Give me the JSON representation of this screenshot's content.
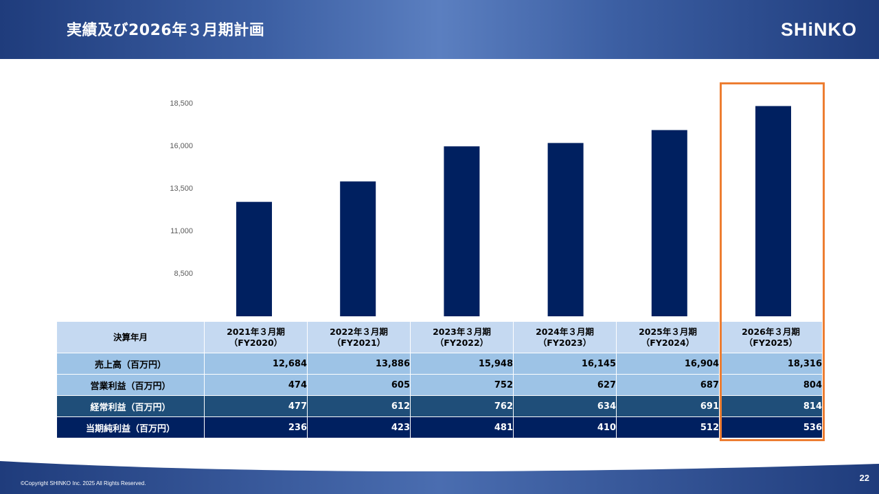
{
  "header": {
    "title": "実績及び2026年３月期計画",
    "logo_text": "SHiNKO"
  },
  "colors": {
    "bar": "#002060",
    "highlight": "#ed7d31",
    "header_dark": "#1f3c7c",
    "header_light": "#5b7fc0"
  },
  "chart_data": {
    "type": "bar",
    "title": "",
    "xlabel": "",
    "ylabel": "",
    "categories": [
      "FY2020",
      "FY2021",
      "FY2022",
      "FY2023",
      "FY2024",
      "FY2025"
    ],
    "values": [
      12684,
      13886,
      15948,
      16145,
      16904,
      18316
    ],
    "yticks": [
      8500,
      11000,
      13500,
      16000,
      18500
    ],
    "ytick_labels": [
      "8,500",
      "11,000",
      "13,500",
      "16,000",
      "18,500"
    ],
    "ylim": [
      6000,
      19750
    ],
    "grid": false,
    "legend": "none",
    "highlighted_category": "FY2025"
  },
  "table": {
    "corner_label": "決算年月",
    "columns": [
      {
        "line1": "2021年３月期",
        "line2": "（FY2020）"
      },
      {
        "line1": "2022年３月期",
        "line2": "（FY2021）"
      },
      {
        "line1": "2023年３月期",
        "line2": "（FY2022）"
      },
      {
        "line1": "2024年３月期",
        "line2": "（FY2023）"
      },
      {
        "line1": "2025年３月期",
        "line2": "（FY2024）"
      },
      {
        "line1": "2026年３月期",
        "line2": "（FY2025）"
      }
    ],
    "rows": [
      {
        "label": "売上高（百万円）",
        "values": [
          "12,684",
          "13,886",
          "15,948",
          "16,145",
          "16,904",
          "18,316"
        ]
      },
      {
        "label": "営業利益（百万円）",
        "values": [
          "474",
          "605",
          "752",
          "627",
          "687",
          "804"
        ]
      },
      {
        "label": "経常利益（百万円）",
        "values": [
          "477",
          "612",
          "762",
          "634",
          "691",
          "814"
        ]
      },
      {
        "label": "当期純利益（百万円）",
        "values": [
          "236",
          "423",
          "481",
          "410",
          "512",
          "536"
        ]
      }
    ]
  },
  "footer": {
    "copyright": "©Copyright SHINKO Inc. 2025 All Rights Reserved.",
    "page_number": "22"
  }
}
